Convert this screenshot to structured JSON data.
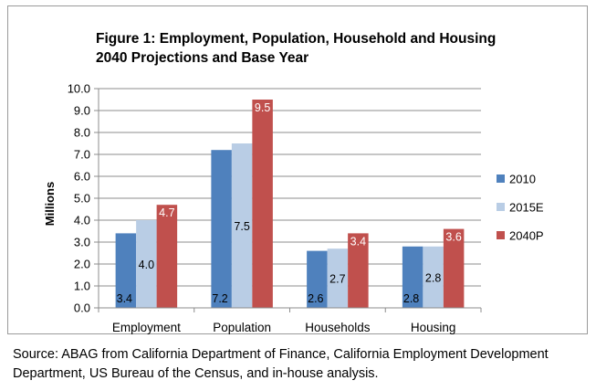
{
  "chart_data": {
    "type": "bar",
    "title_line1": "Figure 1: Employment, Population, Household and Housing",
    "title_line2": "2040 Projections and Base Year",
    "xlabel": "",
    "ylabel": "Millions",
    "ylim": [
      0,
      10
    ],
    "ytick_step": 1,
    "yticks": [
      "0.0",
      "1.0",
      "2.0",
      "3.0",
      "4.0",
      "5.0",
      "6.0",
      "7.0",
      "8.0",
      "9.0",
      "10.0"
    ],
    "grid": true,
    "legend_position": "right",
    "categories": [
      "Employment",
      "Population",
      "Households",
      "Housing"
    ],
    "series": [
      {
        "name": "2010",
        "color": "#4f81bd",
        "values": [
          3.4,
          7.2,
          2.6,
          2.8
        ],
        "labels": [
          "3.4",
          "7.2",
          "2.6",
          "2.8"
        ],
        "label_color": "#000000"
      },
      {
        "name": "2015E",
        "color": "#b9cde5",
        "values": [
          4.0,
          7.5,
          2.7,
          2.8
        ],
        "labels": [
          "4.0",
          "7.5",
          "2.7",
          "2.8"
        ],
        "label_color": "#000000"
      },
      {
        "name": "2040P",
        "color": "#c0504d",
        "values": [
          4.7,
          9.5,
          3.4,
          3.6
        ],
        "labels": [
          "4.7",
          "9.5",
          "3.4",
          "3.6"
        ],
        "label_color": "#ffffff"
      }
    ]
  },
  "source": "Source: ABAG from California Department of Finance, California Employment Development Department, US Bureau of the Census, and in-house analysis."
}
